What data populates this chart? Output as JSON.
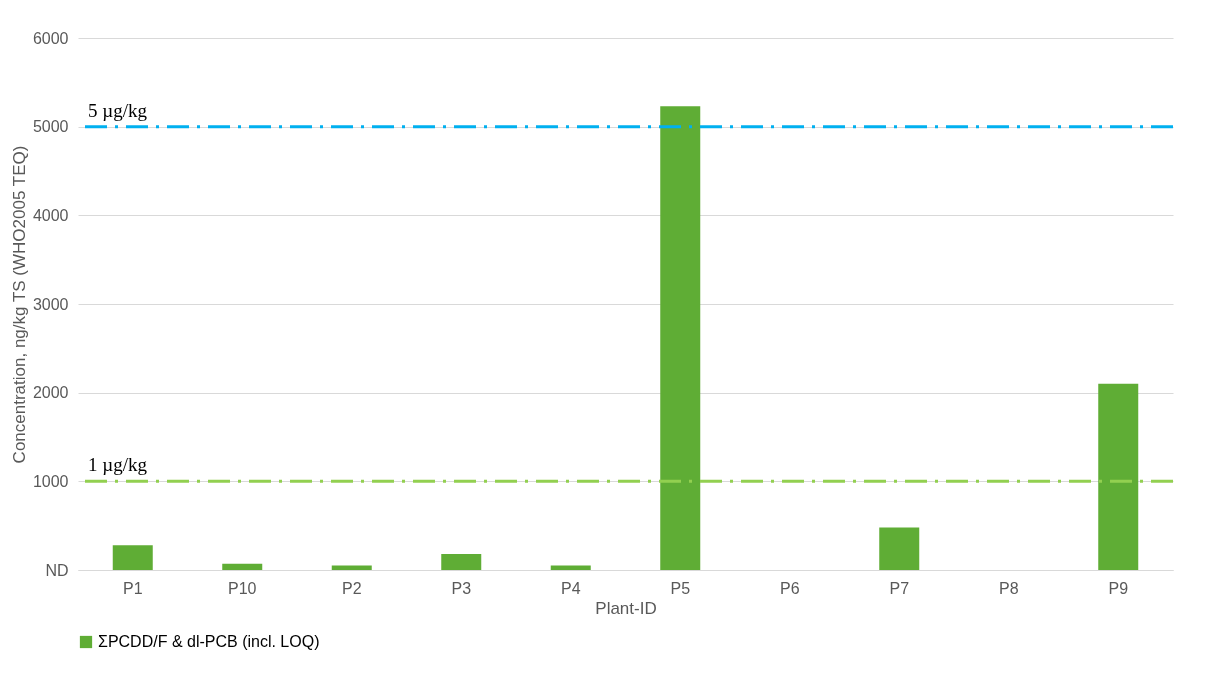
{
  "chart_data": {
    "type": "bar",
    "xlabel": "Plant-ID",
    "ylabel": "Concentration, ng/kg TS (WHO2005 TEQ)",
    "categories": [
      "P1",
      "P10",
      "P2",
      "P3",
      "P4",
      "P5",
      "P6",
      "P7",
      "P8",
      "P9"
    ],
    "series": [
      {
        "name": "ΣPCDD/F & dl-PCB (incl. LOQ)",
        "color": "#5fad35",
        "values": [
          280,
          70,
          50,
          180,
          50,
          5230,
          0,
          480,
          0,
          2100
        ]
      }
    ],
    "ylim": [
      0,
      6000
    ],
    "yticks": [
      {
        "value": 0,
        "label": "ND"
      },
      1000,
      2000,
      3000,
      4000,
      5000,
      6000
    ],
    "ref_lines": [
      {
        "axis": "y",
        "value": 5000,
        "label": "5 µg/kg",
        "color": "#00b0f0",
        "line_style": "dashed"
      },
      {
        "axis": "y",
        "value": 1000,
        "label": "1 µg/kg",
        "color": "#92d050",
        "line_style": "dashed"
      }
    ],
    "grid": "y",
    "legend": "bottom"
  }
}
